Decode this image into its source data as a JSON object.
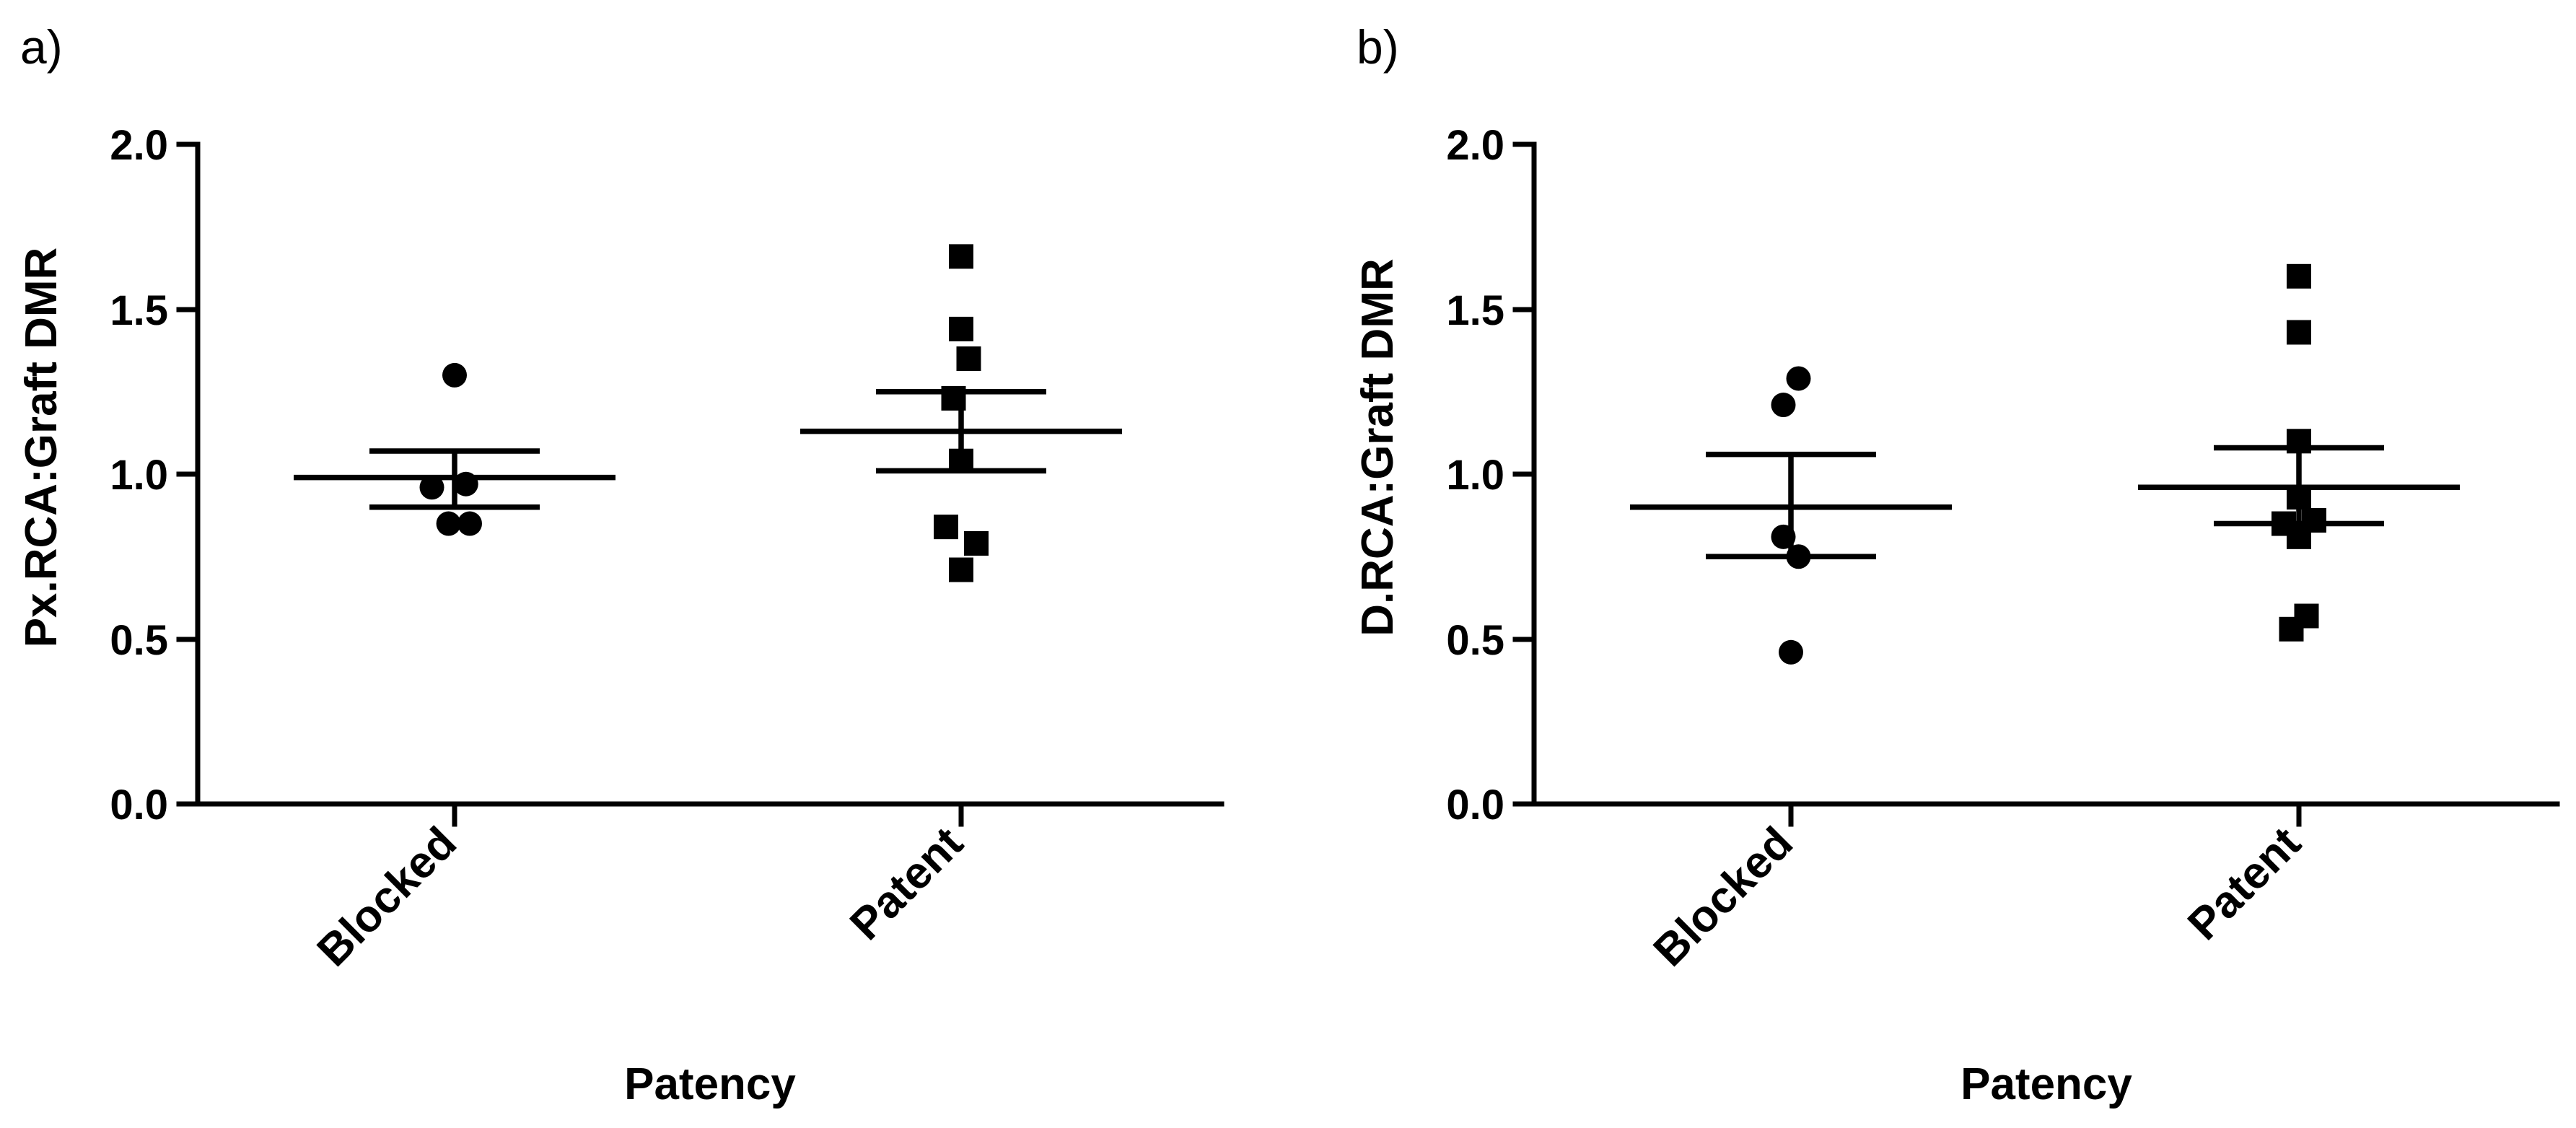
{
  "chart_data": [
    {
      "type": "scatter",
      "panel_label": "a)",
      "title": "",
      "xlabel": "Patency",
      "ylabel": "Px.RCA:Graft DMR",
      "ylim": [
        0,
        2
      ],
      "yticks": [
        0,
        0.5,
        1,
        1.5,
        2
      ],
      "ytick_labels": [
        "0.0",
        "0.5",
        "1.0",
        "1.5",
        "2.0"
      ],
      "categories": [
        "Blocked",
        "Patent"
      ],
      "series": [
        {
          "name": "Blocked",
          "marker": "circle",
          "values": [
            1.3,
            0.96,
            0.97,
            0.85,
            0.85
          ],
          "offsets": [
            0,
            -0.3,
            0.15,
            -0.08,
            0.2
          ],
          "mean": 0.99,
          "sem": [
            0.9,
            1.07
          ]
        },
        {
          "name": "Patent",
          "marker": "square",
          "values": [
            1.66,
            1.44,
            1.35,
            1.23,
            1.04,
            0.84,
            0.79,
            0.71
          ],
          "offsets": [
            0,
            0,
            0.1,
            -0.1,
            0,
            -0.2,
            0.2,
            0
          ],
          "mean": 1.13,
          "sem": [
            1.01,
            1.25
          ]
        }
      ]
    },
    {
      "type": "scatter",
      "panel_label": "b)",
      "title": "",
      "xlabel": "Patency",
      "ylabel": "D.RCA:Graft DMR",
      "ylim": [
        0,
        2
      ],
      "yticks": [
        0,
        0.5,
        1,
        1.5,
        2
      ],
      "ytick_labels": [
        "0.0",
        "0.5",
        "1.0",
        "1.5",
        "2.0"
      ],
      "categories": [
        "Blocked",
        "Patent"
      ],
      "series": [
        {
          "name": "Blocked",
          "marker": "circle",
          "values": [
            1.29,
            1.21,
            0.81,
            0.75,
            0.46
          ],
          "offsets": [
            0.1,
            -0.1,
            -0.1,
            0.1,
            0
          ],
          "mean": 0.9,
          "sem": [
            0.75,
            1.06
          ]
        },
        {
          "name": "Patent",
          "marker": "square",
          "values": [
            1.6,
            1.43,
            1.1,
            0.93,
            0.86,
            0.85,
            0.81,
            0.57,
            0.53
          ],
          "offsets": [
            0,
            0,
            0,
            0,
            0.2,
            -0.2,
            0,
            0.1,
            -0.1
          ],
          "mean": 0.96,
          "sem": [
            0.85,
            1.08
          ]
        }
      ]
    }
  ]
}
